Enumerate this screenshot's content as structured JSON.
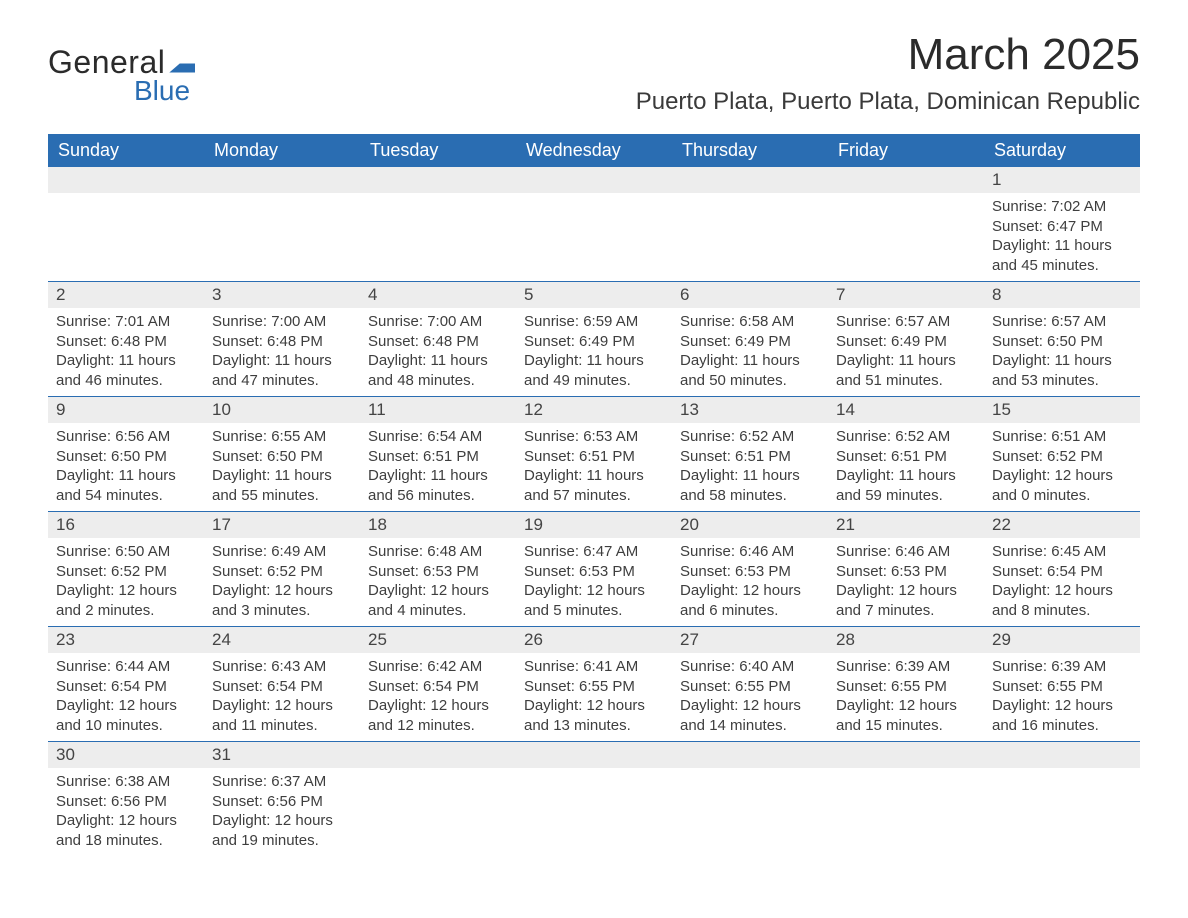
{
  "logo": {
    "text_top": "General",
    "text_bottom": "Blue"
  },
  "header": {
    "title": "March 2025",
    "location": "Puerto Plata, Puerto Plata, Dominican Republic"
  },
  "colors": {
    "header_bg": "#2a6db2",
    "header_text": "#ffffff",
    "daynum_bg": "#ededed",
    "row_divider": "#2a6db2",
    "body_text": "#3e3e3e"
  },
  "weekdays": [
    "Sunday",
    "Monday",
    "Tuesday",
    "Wednesday",
    "Thursday",
    "Friday",
    "Saturday"
  ],
  "weeks": [
    [
      null,
      null,
      null,
      null,
      null,
      null,
      {
        "n": "1",
        "sunrise": "Sunrise: 7:02 AM",
        "sunset": "Sunset: 6:47 PM",
        "daylight": "Daylight: 11 hours and 45 minutes."
      }
    ],
    [
      {
        "n": "2",
        "sunrise": "Sunrise: 7:01 AM",
        "sunset": "Sunset: 6:48 PM",
        "daylight": "Daylight: 11 hours and 46 minutes."
      },
      {
        "n": "3",
        "sunrise": "Sunrise: 7:00 AM",
        "sunset": "Sunset: 6:48 PM",
        "daylight": "Daylight: 11 hours and 47 minutes."
      },
      {
        "n": "4",
        "sunrise": "Sunrise: 7:00 AM",
        "sunset": "Sunset: 6:48 PM",
        "daylight": "Daylight: 11 hours and 48 minutes."
      },
      {
        "n": "5",
        "sunrise": "Sunrise: 6:59 AM",
        "sunset": "Sunset: 6:49 PM",
        "daylight": "Daylight: 11 hours and 49 minutes."
      },
      {
        "n": "6",
        "sunrise": "Sunrise: 6:58 AM",
        "sunset": "Sunset: 6:49 PM",
        "daylight": "Daylight: 11 hours and 50 minutes."
      },
      {
        "n": "7",
        "sunrise": "Sunrise: 6:57 AM",
        "sunset": "Sunset: 6:49 PM",
        "daylight": "Daylight: 11 hours and 51 minutes."
      },
      {
        "n": "8",
        "sunrise": "Sunrise: 6:57 AM",
        "sunset": "Sunset: 6:50 PM",
        "daylight": "Daylight: 11 hours and 53 minutes."
      }
    ],
    [
      {
        "n": "9",
        "sunrise": "Sunrise: 6:56 AM",
        "sunset": "Sunset: 6:50 PM",
        "daylight": "Daylight: 11 hours and 54 minutes."
      },
      {
        "n": "10",
        "sunrise": "Sunrise: 6:55 AM",
        "sunset": "Sunset: 6:50 PM",
        "daylight": "Daylight: 11 hours and 55 minutes."
      },
      {
        "n": "11",
        "sunrise": "Sunrise: 6:54 AM",
        "sunset": "Sunset: 6:51 PM",
        "daylight": "Daylight: 11 hours and 56 minutes."
      },
      {
        "n": "12",
        "sunrise": "Sunrise: 6:53 AM",
        "sunset": "Sunset: 6:51 PM",
        "daylight": "Daylight: 11 hours and 57 minutes."
      },
      {
        "n": "13",
        "sunrise": "Sunrise: 6:52 AM",
        "sunset": "Sunset: 6:51 PM",
        "daylight": "Daylight: 11 hours and 58 minutes."
      },
      {
        "n": "14",
        "sunrise": "Sunrise: 6:52 AM",
        "sunset": "Sunset: 6:51 PM",
        "daylight": "Daylight: 11 hours and 59 minutes."
      },
      {
        "n": "15",
        "sunrise": "Sunrise: 6:51 AM",
        "sunset": "Sunset: 6:52 PM",
        "daylight": "Daylight: 12 hours and 0 minutes."
      }
    ],
    [
      {
        "n": "16",
        "sunrise": "Sunrise: 6:50 AM",
        "sunset": "Sunset: 6:52 PM",
        "daylight": "Daylight: 12 hours and 2 minutes."
      },
      {
        "n": "17",
        "sunrise": "Sunrise: 6:49 AM",
        "sunset": "Sunset: 6:52 PM",
        "daylight": "Daylight: 12 hours and 3 minutes."
      },
      {
        "n": "18",
        "sunrise": "Sunrise: 6:48 AM",
        "sunset": "Sunset: 6:53 PM",
        "daylight": "Daylight: 12 hours and 4 minutes."
      },
      {
        "n": "19",
        "sunrise": "Sunrise: 6:47 AM",
        "sunset": "Sunset: 6:53 PM",
        "daylight": "Daylight: 12 hours and 5 minutes."
      },
      {
        "n": "20",
        "sunrise": "Sunrise: 6:46 AM",
        "sunset": "Sunset: 6:53 PM",
        "daylight": "Daylight: 12 hours and 6 minutes."
      },
      {
        "n": "21",
        "sunrise": "Sunrise: 6:46 AM",
        "sunset": "Sunset: 6:53 PM",
        "daylight": "Daylight: 12 hours and 7 minutes."
      },
      {
        "n": "22",
        "sunrise": "Sunrise: 6:45 AM",
        "sunset": "Sunset: 6:54 PM",
        "daylight": "Daylight: 12 hours and 8 minutes."
      }
    ],
    [
      {
        "n": "23",
        "sunrise": "Sunrise: 6:44 AM",
        "sunset": "Sunset: 6:54 PM",
        "daylight": "Daylight: 12 hours and 10 minutes."
      },
      {
        "n": "24",
        "sunrise": "Sunrise: 6:43 AM",
        "sunset": "Sunset: 6:54 PM",
        "daylight": "Daylight: 12 hours and 11 minutes."
      },
      {
        "n": "25",
        "sunrise": "Sunrise: 6:42 AM",
        "sunset": "Sunset: 6:54 PM",
        "daylight": "Daylight: 12 hours and 12 minutes."
      },
      {
        "n": "26",
        "sunrise": "Sunrise: 6:41 AM",
        "sunset": "Sunset: 6:55 PM",
        "daylight": "Daylight: 12 hours and 13 minutes."
      },
      {
        "n": "27",
        "sunrise": "Sunrise: 6:40 AM",
        "sunset": "Sunset: 6:55 PM",
        "daylight": "Daylight: 12 hours and 14 minutes."
      },
      {
        "n": "28",
        "sunrise": "Sunrise: 6:39 AM",
        "sunset": "Sunset: 6:55 PM",
        "daylight": "Daylight: 12 hours and 15 minutes."
      },
      {
        "n": "29",
        "sunrise": "Sunrise: 6:39 AM",
        "sunset": "Sunset: 6:55 PM",
        "daylight": "Daylight: 12 hours and 16 minutes."
      }
    ],
    [
      {
        "n": "30",
        "sunrise": "Sunrise: 6:38 AM",
        "sunset": "Sunset: 6:56 PM",
        "daylight": "Daylight: 12 hours and 18 minutes."
      },
      {
        "n": "31",
        "sunrise": "Sunrise: 6:37 AM",
        "sunset": "Sunset: 6:56 PM",
        "daylight": "Daylight: 12 hours and 19 minutes."
      },
      null,
      null,
      null,
      null,
      null
    ]
  ]
}
